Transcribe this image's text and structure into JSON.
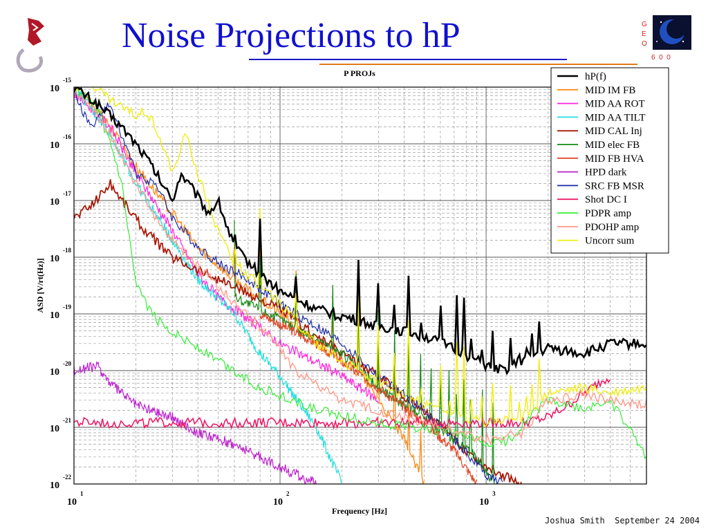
{
  "slide": {
    "title": "Noise Projections to hP",
    "footer": "Joshua Smith  September 24 2004",
    "logo_text": "G E O 6 0 0"
  },
  "chart_data": {
    "type": "line",
    "title": "P PROJs",
    "xlabel": "Frequency [Hz]",
    "ylabel": "ASD [V/rt(Hz)]",
    "xscale": "log",
    "yscale": "log",
    "xlim": [
      10,
      6000
    ],
    "ylim": [
      1e-22,
      1e-15
    ],
    "x_ticks": [
      {
        "base": "10",
        "exp": "1",
        "value": 10
      },
      {
        "base": "10",
        "exp": "2",
        "value": 100
      },
      {
        "base": "10",
        "exp": "3",
        "value": 1000
      }
    ],
    "y_ticks": [
      {
        "base": "10",
        "exp": "-15",
        "value": 1e-15
      },
      {
        "base": "10",
        "exp": "-16",
        "value": 1e-16
      },
      {
        "base": "10",
        "exp": "-17",
        "value": 1e-17
      },
      {
        "base": "10",
        "exp": "-18",
        "value": 1e-18
      },
      {
        "base": "10",
        "exp": "-19",
        "value": 1e-19
      },
      {
        "base": "10",
        "exp": "-20",
        "value": 1e-20
      },
      {
        "base": "10",
        "exp": "-21",
        "value": 1e-21
      },
      {
        "base": "10",
        "exp": "-22",
        "value": 1e-22
      }
    ],
    "grid": true,
    "legend_position": "top-right",
    "line_spikes_hz": [
      60,
      80,
      120,
      180,
      240,
      300,
      360,
      420,
      480,
      540,
      600,
      660,
      720,
      780,
      840,
      960,
      1080,
      1200,
      1320,
      1440,
      1560,
      1680,
      1800,
      2100
    ],
    "series": [
      {
        "name": "hP(f)",
        "color": "#000000",
        "width": 2.6,
        "spikes": true,
        "points": [
          [
            10,
            1e-15
          ],
          [
            13,
            5e-16
          ],
          [
            17,
            2e-16
          ],
          [
            20,
            1e-16
          ],
          [
            23,
            5e-17
          ],
          [
            28,
            1.5e-17
          ],
          [
            30,
            1e-17
          ],
          [
            33,
            3e-17
          ],
          [
            38,
            1.5e-17
          ],
          [
            45,
            6e-18
          ],
          [
            50,
            1e-17
          ],
          [
            60,
            1.5e-18
          ],
          [
            80,
            5e-19
          ],
          [
            100,
            2.5e-19
          ],
          [
            150,
            1.2e-19
          ],
          [
            200,
            9e-20
          ],
          [
            300,
            6e-20
          ],
          [
            400,
            5e-20
          ],
          [
            500,
            4e-20
          ],
          [
            700,
            2.5e-20
          ],
          [
            900,
            1.5e-20
          ],
          [
            1000,
            1.2e-20
          ],
          [
            1200,
            1e-20
          ],
          [
            1500,
            1.5e-20
          ],
          [
            2000,
            2.5e-20
          ],
          [
            3000,
            2e-20
          ],
          [
            4000,
            3e-20
          ],
          [
            6000,
            3e-20
          ]
        ]
      },
      {
        "name": "MID IM FB",
        "color": "#ff8c1a",
        "width": 1.4,
        "spikes": true,
        "points": [
          [
            10,
            1e-15
          ],
          [
            14,
            3e-16
          ],
          [
            20,
            4e-17
          ],
          [
            30,
            6e-18
          ],
          [
            40,
            1.5e-18
          ],
          [
            60,
            4e-19
          ],
          [
            100,
            1e-19
          ],
          [
            150,
            3e-20
          ],
          [
            200,
            1.5e-20
          ],
          [
            250,
            8e-21
          ],
          [
            300,
            3e-21
          ],
          [
            400,
            6e-22
          ],
          [
            500,
            1e-22
          ]
        ]
      },
      {
        "name": "MID AA ROT",
        "color": "#ff22dd",
        "width": 1.2,
        "spikes": false,
        "points": [
          [
            10,
            8e-16
          ],
          [
            15,
            2e-16
          ],
          [
            20,
            3e-17
          ],
          [
            30,
            3e-18
          ],
          [
            40,
            5e-19
          ],
          [
            50,
            2e-19
          ],
          [
            70,
            8e-20
          ],
          [
            100,
            3e-20
          ],
          [
            200,
            8e-21
          ],
          [
            300,
            3e-21
          ]
        ]
      },
      {
        "name": "MID AA TILT",
        "color": "#22dddd",
        "width": 1.2,
        "spikes": false,
        "points": [
          [
            10,
            1e-15
          ],
          [
            15,
            1.5e-16
          ],
          [
            20,
            2e-17
          ],
          [
            30,
            2e-18
          ],
          [
            40,
            4e-19
          ],
          [
            60,
            1e-19
          ],
          [
            80,
            2e-20
          ],
          [
            100,
            8e-21
          ],
          [
            150,
            1e-21
          ],
          [
            200,
            1e-22
          ]
        ]
      },
      {
        "name": "MID CAL Inj",
        "color": "#a81808",
        "width": 1.8,
        "spikes": false,
        "points": [
          [
            10,
            5e-18
          ],
          [
            12,
            8e-18
          ],
          [
            15,
            2e-17
          ],
          [
            18,
            8e-18
          ],
          [
            22,
            3e-18
          ],
          [
            30,
            1e-18
          ],
          [
            40,
            6e-19
          ],
          [
            60,
            3e-19
          ],
          [
            100,
            1.2e-19
          ],
          [
            150,
            4e-20
          ],
          [
            200,
            2e-20
          ],
          [
            300,
            8e-21
          ],
          [
            500,
            2e-21
          ],
          [
            700,
            6e-22
          ],
          [
            1000,
            2e-22
          ],
          [
            1500,
            1e-22
          ]
        ]
      },
      {
        "name": "MID elec FB",
        "color": "#108810",
        "width": 1.2,
        "spikes": true,
        "points": [
          [
            60,
            2e-19
          ],
          [
            100,
            8e-20
          ],
          [
            200,
            2e-20
          ],
          [
            300,
            5e-21
          ],
          [
            500,
            1.5e-21
          ],
          [
            700,
            6e-22
          ],
          [
            900,
            3e-22
          ],
          [
            1100,
            1e-22
          ]
        ]
      },
      {
        "name": "MID FB HVA",
        "color": "#e04828",
        "width": 1.2,
        "spikes": false,
        "points": [
          [
            80,
            1e-19
          ],
          [
            150,
            3e-20
          ],
          [
            300,
            5e-21
          ],
          [
            500,
            1.2e-21
          ],
          [
            700,
            4e-22
          ],
          [
            900,
            1e-22
          ]
        ]
      },
      {
        "name": "HPD dark",
        "color": "#bb22cc",
        "width": 1.2,
        "spikes": false,
        "points": [
          [
            10,
            1e-20
          ],
          [
            13,
            1.2e-20
          ],
          [
            15,
            6e-21
          ],
          [
            20,
            2.5e-21
          ],
          [
            30,
            1.5e-21
          ],
          [
            40,
            8e-22
          ],
          [
            60,
            5e-22
          ],
          [
            80,
            3e-22
          ],
          [
            100,
            2e-22
          ],
          [
            150,
            1e-22
          ]
        ]
      },
      {
        "name": "SRC FB MSR",
        "color": "#1a2aa8",
        "width": 1.2,
        "spikes": false,
        "points": [
          [
            10,
            8e-16
          ],
          [
            12,
            2e-16
          ],
          [
            15,
            5e-16
          ],
          [
            20,
            3e-17
          ],
          [
            25,
            2e-17
          ],
          [
            30,
            5e-18
          ],
          [
            40,
            1.5e-18
          ],
          [
            50,
            8e-19
          ],
          [
            70,
            4e-19
          ],
          [
            100,
            1.5e-19
          ],
          [
            150,
            6e-20
          ],
          [
            200,
            3e-20
          ],
          [
            300,
            8e-21
          ],
          [
            500,
            2e-21
          ],
          [
            700,
            6e-22
          ],
          [
            1000,
            1.5e-22
          ],
          [
            1200,
            1e-22
          ]
        ]
      },
      {
        "name": "Shot DC I",
        "color": "#ee1a66",
        "width": 1.6,
        "spikes": false,
        "points": [
          [
            10,
            1.2e-21
          ],
          [
            1500,
            1.2e-21
          ],
          [
            2000,
            1.5e-21
          ],
          [
            2500,
            2.5e-21
          ],
          [
            3000,
            4e-21
          ],
          [
            3500,
            6e-21
          ],
          [
            4000,
            8e-21
          ]
        ]
      },
      {
        "name": "PDPR amp",
        "color": "#33ee33",
        "width": 1.2,
        "spikes": false,
        "points": [
          [
            10,
            1e-15
          ],
          [
            13,
            4e-16
          ],
          [
            15,
            1e-16
          ],
          [
            17,
            2e-17
          ],
          [
            20,
            3e-19
          ],
          [
            25,
            8e-20
          ],
          [
            30,
            5e-20
          ],
          [
            50,
            1.5e-20
          ],
          [
            80,
            5e-21
          ],
          [
            150,
            2e-21
          ],
          [
            300,
            1.2e-21
          ],
          [
            700,
            8e-22
          ],
          [
            1000,
            5e-22
          ],
          [
            1300,
            6e-22
          ],
          [
            1600,
            1.5e-21
          ],
          [
            2000,
            3e-21
          ],
          [
            3000,
            2e-21
          ],
          [
            4000,
            3e-21
          ],
          [
            6000,
            3e-22
          ]
        ]
      },
      {
        "name": "PDOHP amp",
        "color": "#ff9a8a",
        "width": 1.4,
        "spikes": false,
        "points": [
          [
            10,
            1e-15
          ],
          [
            15,
            1.5e-16
          ],
          [
            20,
            2e-17
          ],
          [
            25,
            5e-18
          ],
          [
            30,
            2e-18
          ],
          [
            50,
            3e-19
          ],
          [
            80,
            6e-20
          ],
          [
            120,
            1e-20
          ],
          [
            200,
            3e-21
          ],
          [
            400,
            1.5e-21
          ],
          [
            1000,
            6e-22
          ],
          [
            1500,
            8e-22
          ],
          [
            2000,
            3e-21
          ],
          [
            3000,
            4e-21
          ],
          [
            4000,
            3e-21
          ],
          [
            6000,
            2.5e-21
          ]
        ]
      },
      {
        "name": "Uncorr sum",
        "color": "#f0ee10",
        "width": 1.4,
        "spikes": true,
        "points": [
          [
            10,
            1e-15
          ],
          [
            12,
            1.2e-15
          ],
          [
            15,
            6e-16
          ],
          [
            18,
            4e-16
          ],
          [
            20,
            3e-16
          ],
          [
            22,
            4e-16
          ],
          [
            25,
            2e-16
          ],
          [
            30,
            3e-17
          ],
          [
            35,
            1.5e-16
          ],
          [
            40,
            3e-17
          ],
          [
            50,
            3e-18
          ],
          [
            60,
            8e-19
          ],
          [
            80,
            3e-19
          ],
          [
            100,
            1.5e-19
          ],
          [
            150,
            3e-20
          ],
          [
            200,
            1.5e-20
          ],
          [
            300,
            6e-21
          ],
          [
            500,
            2.5e-21
          ],
          [
            800,
            1.5e-21
          ],
          [
            1000,
            1.2e-21
          ],
          [
            1500,
            1.5e-21
          ],
          [
            2000,
            4e-21
          ],
          [
            3000,
            5e-21
          ],
          [
            4000,
            4e-21
          ],
          [
            6000,
            5e-21
          ]
        ]
      }
    ]
  }
}
